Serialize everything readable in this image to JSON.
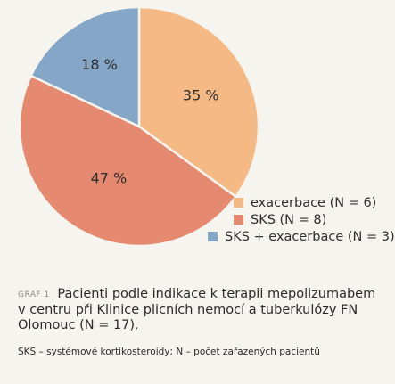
{
  "chart_data": {
    "type": "pie",
    "slices": [
      {
        "label": "exacerbace (N = 6)",
        "value": 35,
        "value_label": "35 %",
        "color": "#f5b985"
      },
      {
        "label": "SKS (N = 8)",
        "value": 47,
        "value_label": "47 %",
        "color": "#e58a70"
      },
      {
        "label": "SKS + exacerbace (N = 3)",
        "value": 18,
        "value_label": "18 %",
        "color": "#86a6c7"
      }
    ],
    "legend_position": "bottom-right"
  },
  "caption": {
    "tag": "GRAF 1",
    "text": "Pacienti podle indikace k terapii mepolizumabem v centru při Klinice plicních nemocí a tuberkulózy FN Olomouc (N = 17).",
    "note": "SKS – systémové kortikosteroidy; N – počet zařazených pacientů"
  }
}
